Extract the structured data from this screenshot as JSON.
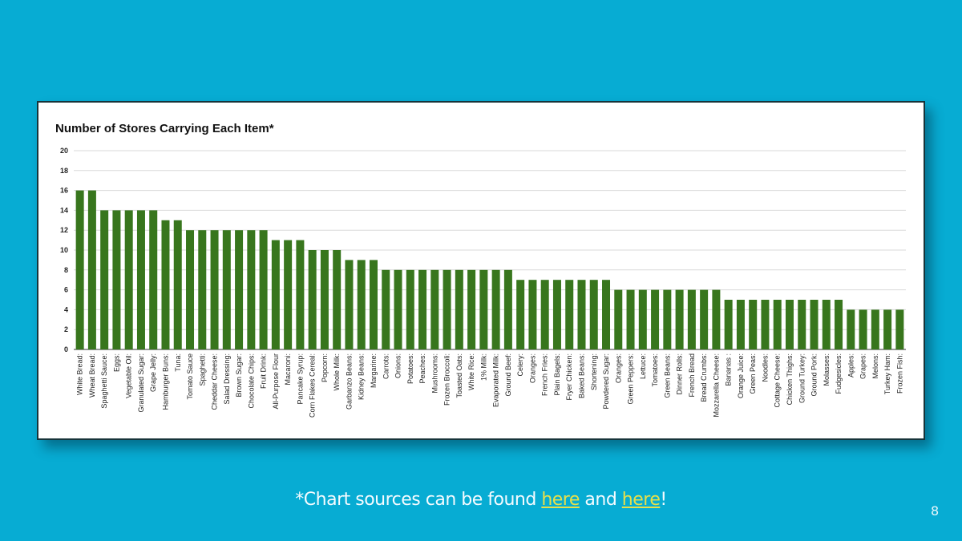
{
  "chart_data": {
    "type": "bar",
    "title": "Number of Stores Carrying Each Item*",
    "xlabel": "",
    "ylabel": "",
    "ylim": [
      0,
      20
    ],
    "yticks": [
      0,
      2,
      4,
      6,
      8,
      10,
      12,
      14,
      16,
      18,
      20
    ],
    "grid": true,
    "bar_color": "#38761d",
    "categories": [
      "White Bread:",
      "Wheat Bread:",
      "Spaghetti Sauce:",
      "Eggs:",
      "Vegetable Oil:",
      "Granulated Sugar:",
      "Grape Jelly:",
      "Hamburger Buns:",
      "Tuna:",
      "Tomato Sauce",
      "Spaghetti:",
      "Cheddar Cheese:",
      "Salad Dressing:",
      "Brown Sugar:",
      "Chocolate Chips:",
      "Fruit Drink:",
      "All-Purpose Flour",
      "Macaroni:",
      "Pancake Syrup:",
      "Corn Flakes Cereal:",
      "Popcorn:",
      "Whole Milk:",
      "Garbanzo Beans:",
      "Kidney Beans:",
      "Margarine:",
      "Carrots:",
      "Onions:",
      "Potatoes:",
      "Peaches:",
      "Mushrooms:",
      "Frozen Broccoli:",
      "Toasted Oats:",
      "White Rice:",
      "1% Milk:",
      "Evaporated Milk:",
      "Ground Beef:",
      "Celery:",
      "Oranges:",
      "French Fries:",
      "Plain Bagels:",
      "Fryer Chicken:",
      "Baked Beans:",
      "Shortening:",
      "Powdered Sugar:",
      "Oranges:",
      "Green Peppers:",
      "Lettuce:",
      "Tomatoes:",
      "Green Beans:",
      "Dinner Rolls:",
      "French Bread",
      "Bread Crumbs:",
      "Mozzarella Cheese:",
      "Bananas :",
      "Orange Juice:",
      "Green Peas:",
      "Noodles:",
      "Cottage Cheese:",
      "Chicken Thighs:",
      "Ground Turkey:",
      "Ground Pork:",
      "Molasses:",
      "Fudgesicles:",
      "Apples:",
      "Grapes:",
      "Melons:",
      "Turkey Ham:",
      "Frozen Fish:"
    ],
    "values": [
      16,
      16,
      14,
      14,
      14,
      14,
      14,
      13,
      13,
      12,
      12,
      12,
      12,
      12,
      12,
      12,
      11,
      11,
      11,
      10,
      10,
      10,
      9,
      9,
      9,
      8,
      8,
      8,
      8,
      8,
      8,
      8,
      8,
      8,
      8,
      8,
      7,
      7,
      7,
      7,
      7,
      7,
      7,
      7,
      6,
      6,
      6,
      6,
      6,
      6,
      6,
      6,
      6,
      5,
      5,
      5,
      5,
      5,
      5,
      5,
      5,
      5,
      5,
      4,
      4,
      4,
      4,
      4
    ]
  },
  "footer": {
    "prefix": "*Chart sources can be found ",
    "link1": "here",
    "middle": " and ",
    "link2": "here",
    "suffix": "!"
  },
  "page_number": "8",
  "colors": {
    "background": "#07acd3",
    "link": "#e6e04a"
  }
}
